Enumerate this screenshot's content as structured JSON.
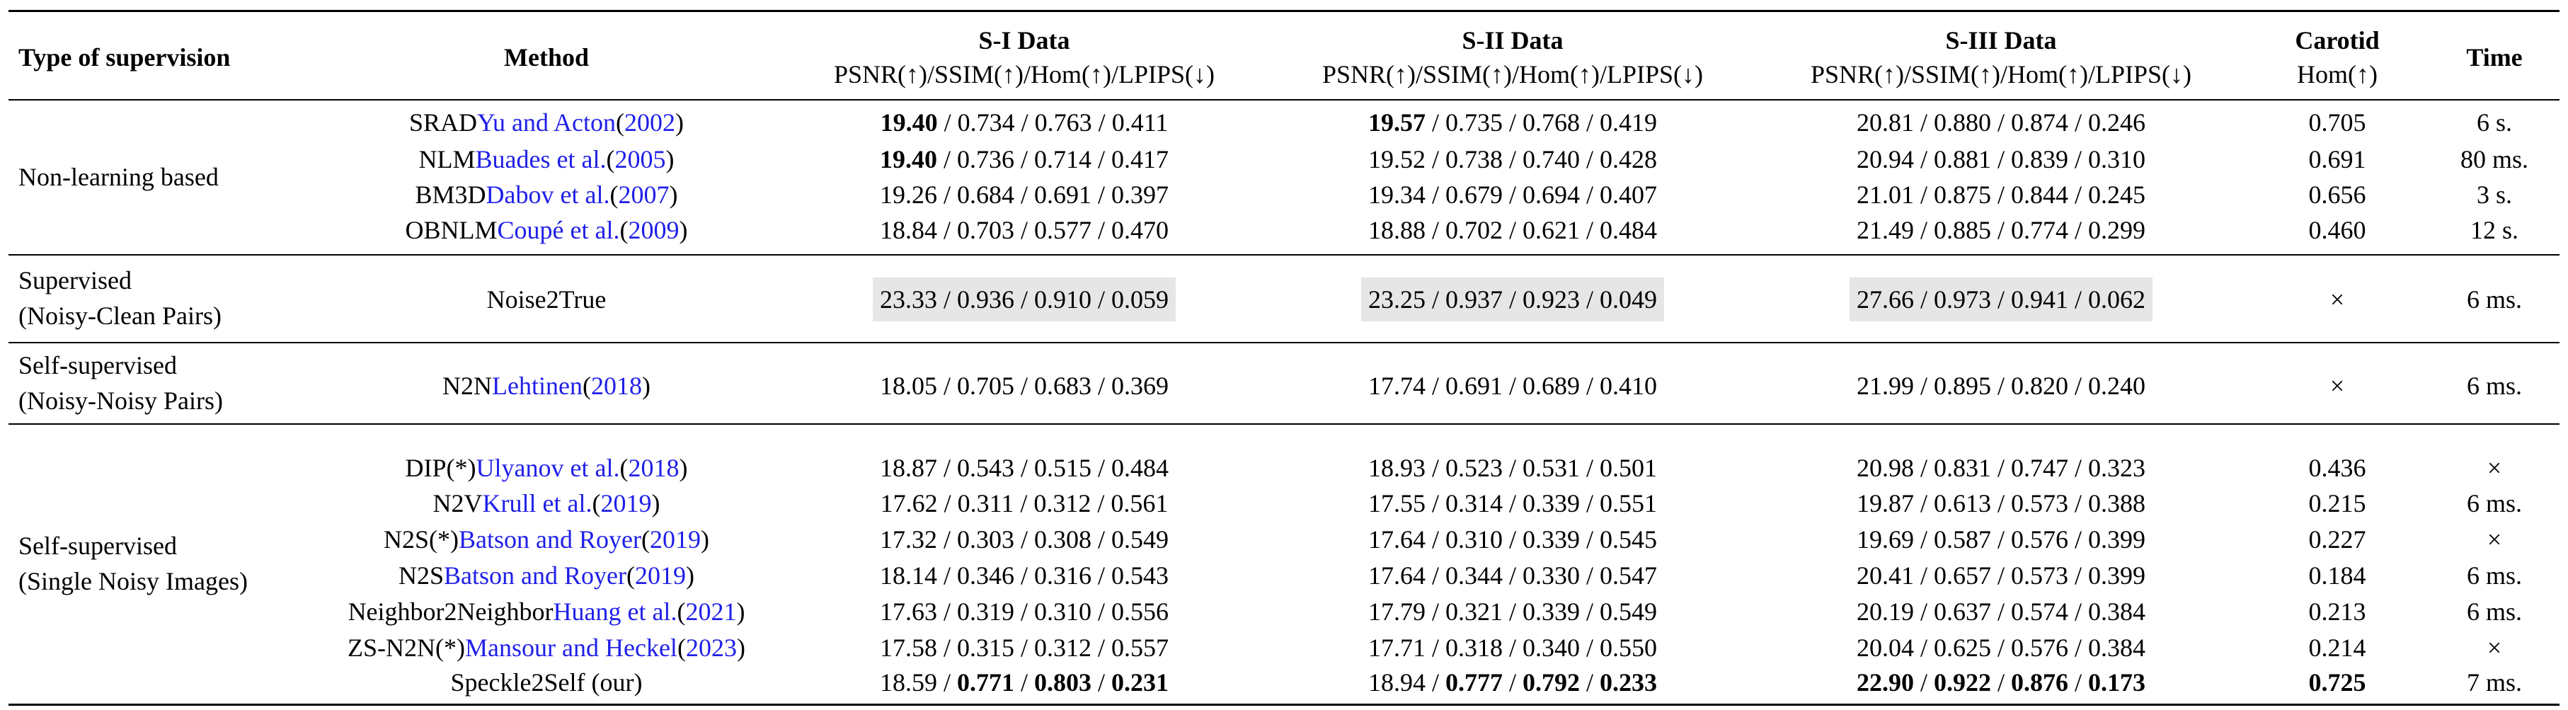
{
  "header": {
    "type_of_supervision": "Type of supervision",
    "method": "Method",
    "s1_title": "S-I Data",
    "s2_title": "S-II Data",
    "s3_title": "S-III Data",
    "metrics": "PSNR(↑)/SSIM(↑)/Hom(↑)/LPIPS(↓)",
    "carotid_title": "Carotid",
    "carotid_metric": "Hom(↑)",
    "time": "Time"
  },
  "groups": [
    {
      "line1": "Non-learning based",
      "line2": ""
    },
    {
      "line1": "Supervised",
      "line2": "(Noisy-Clean Pairs)"
    },
    {
      "line1": "Self-supervised",
      "line2": "(Noisy-Noisy Pairs)"
    },
    {
      "line1": "Self-supervised",
      "line2": "(Single Noisy Images)"
    }
  ],
  "rows": [
    {
      "m": {
        "name": "SRAD ",
        "cite": "Yu and Acton",
        "open": " (",
        "year": "2002",
        "close": ")"
      },
      "s1": {
        "psnr": "19.40",
        "ssim": "0.734",
        "hom": "0.763",
        "lpips": "0.411"
      },
      "s2": {
        "psnr": "19.57",
        "ssim": "0.735",
        "hom": "0.768",
        "lpips": "0.419"
      },
      "s3": {
        "psnr": "20.81",
        "ssim": "0.880",
        "hom": "0.874",
        "lpips": "0.246"
      },
      "carotid": "0.705",
      "time": "6 s."
    },
    {
      "m": {
        "name": "NLM ",
        "cite": "Buades et al.",
        "open": " (",
        "year": "2005",
        "close": ")"
      },
      "s1": {
        "psnr": "19.40",
        "ssim": "0.736",
        "hom": "0.714",
        "lpips": "0.417"
      },
      "s2": {
        "psnr": "19.52",
        "ssim": "0.738",
        "hom": "0.740",
        "lpips": "0.428"
      },
      "s3": {
        "psnr": "20.94",
        "ssim": "0.881",
        "hom": "0.839",
        "lpips": "0.310"
      },
      "carotid": "0.691",
      "time": "80 ms."
    },
    {
      "m": {
        "name": "BM3D ",
        "cite": "Dabov et al.",
        "open": " (",
        "year": "2007",
        "close": ")"
      },
      "s1": {
        "psnr": "19.26",
        "ssim": "0.684",
        "hom": "0.691",
        "lpips": "0.397"
      },
      "s2": {
        "psnr": "19.34",
        "ssim": "0.679",
        "hom": "0.694",
        "lpips": "0.407"
      },
      "s3": {
        "psnr": "21.01",
        "ssim": "0.875",
        "hom": "0.844",
        "lpips": "0.245"
      },
      "carotid": "0.656",
      "time": "3 s."
    },
    {
      "m": {
        "name": "OBNLM ",
        "cite": "Coupé et al.",
        "open": " (",
        "year": "2009",
        "close": ")"
      },
      "s1": {
        "psnr": "18.84",
        "ssim": "0.703",
        "hom": "0.577",
        "lpips": "0.470"
      },
      "s2": {
        "psnr": "18.88",
        "ssim": "0.702",
        "hom": "0.621",
        "lpips": "0.484"
      },
      "s3": {
        "psnr": "21.49",
        "ssim": "0.885",
        "hom": "0.774",
        "lpips": "0.299"
      },
      "carotid": "0.460",
      "time": "12 s."
    },
    {
      "m": {
        "name": "Noise2True",
        "cite": "",
        "open": "",
        "year": "",
        "close": ""
      },
      "s1": {
        "psnr": "23.33",
        "ssim": "0.936",
        "hom": "0.910",
        "lpips": "0.059"
      },
      "s2": {
        "psnr": "23.25",
        "ssim": "0.937",
        "hom": "0.923",
        "lpips": "0.049"
      },
      "s3": {
        "psnr": "27.66",
        "ssim": "0.973",
        "hom": "0.941",
        "lpips": "0.062"
      },
      "carotid": "×",
      "time": "6 ms."
    },
    {
      "m": {
        "name": "N2N ",
        "cite": "Lehtinen",
        "open": " (",
        "year": "2018",
        "close": ")"
      },
      "s1": {
        "psnr": "18.05",
        "ssim": "0.705",
        "hom": "0.683",
        "lpips": "0.369"
      },
      "s2": {
        "psnr": "17.74",
        "ssim": "0.691",
        "hom": "0.689",
        "lpips": "0.410"
      },
      "s3": {
        "psnr": "21.99",
        "ssim": "0.895",
        "hom": "0.820",
        "lpips": "0.240"
      },
      "carotid": "×",
      "time": "6 ms."
    },
    {
      "m": {
        "name": "DIP(*) ",
        "cite": "Ulyanov et al.",
        "open": " (",
        "year": "2018",
        "close": ")"
      },
      "s1": {
        "psnr": "18.87",
        "ssim": "0.543",
        "hom": "0.515",
        "lpips": "0.484"
      },
      "s2": {
        "psnr": "18.93",
        "ssim": "0.523",
        "hom": "0.531",
        "lpips": "0.501"
      },
      "s3": {
        "psnr": "20.98",
        "ssim": "0.831",
        "hom": "0.747",
        "lpips": "0.323"
      },
      "carotid": "0.436",
      "time": "×"
    },
    {
      "m": {
        "name": "N2V ",
        "cite": "Krull et al.",
        "open": " (",
        "year": "2019",
        "close": ")"
      },
      "s1": {
        "psnr": "17.62",
        "ssim": "0.311",
        "hom": "0.312",
        "lpips": "0.561"
      },
      "s2": {
        "psnr": "17.55",
        "ssim": "0.314",
        "hom": "0.339",
        "lpips": "0.551"
      },
      "s3": {
        "psnr": "19.87",
        "ssim": "0.613",
        "hom": "0.573",
        "lpips": "0.388"
      },
      "carotid": "0.215",
      "time": "6 ms."
    },
    {
      "m": {
        "name": "N2S(*) ",
        "cite": "Batson and Royer",
        "open": " (",
        "year": "2019",
        "close": ")"
      },
      "s1": {
        "psnr": "17.32",
        "ssim": "0.303",
        "hom": "0.308",
        "lpips": "0.549"
      },
      "s2": {
        "psnr": "17.64",
        "ssim": "0.310",
        "hom": "0.339",
        "lpips": "0.545"
      },
      "s3": {
        "psnr": "19.69",
        "ssim": "0.587",
        "hom": "0.576",
        "lpips": "0.399"
      },
      "carotid": "0.227",
      "time": "×"
    },
    {
      "m": {
        "name": "N2S ",
        "cite": "Batson and Royer",
        "open": " (",
        "year": "2019",
        "close": ")"
      },
      "s1": {
        "psnr": "18.14",
        "ssim": "0.346",
        "hom": "0.316",
        "lpips": "0.543"
      },
      "s2": {
        "psnr": "17.64",
        "ssim": "0.344",
        "hom": "0.330",
        "lpips": "0.547"
      },
      "s3": {
        "psnr": "20.41",
        "ssim": "0.657",
        "hom": "0.573",
        "lpips": "0.399"
      },
      "carotid": "0.184",
      "time": "6 ms."
    },
    {
      "m": {
        "name": "Neighbor2Neighbor ",
        "cite": "Huang et al.",
        "open": " (",
        "year": "2021",
        "close": ")"
      },
      "s1": {
        "psnr": "17.63",
        "ssim": "0.319",
        "hom": "0.310",
        "lpips": "0.556"
      },
      "s2": {
        "psnr": "17.79",
        "ssim": "0.321",
        "hom": "0.339",
        "lpips": "0.549"
      },
      "s3": {
        "psnr": "20.19",
        "ssim": "0.637",
        "hom": "0.574",
        "lpips": "0.384"
      },
      "carotid": "0.213",
      "time": "6 ms."
    },
    {
      "m": {
        "name": "ZS-N2N(*) ",
        "cite": "Mansour and Heckel",
        "open": " (",
        "year": "2023",
        "close": ")"
      },
      "s1": {
        "psnr": "17.58",
        "ssim": "0.315",
        "hom": "0.312",
        "lpips": "0.557"
      },
      "s2": {
        "psnr": "17.71",
        "ssim": "0.318",
        "hom": "0.340",
        "lpips": "0.550"
      },
      "s3": {
        "psnr": "20.04",
        "ssim": "0.625",
        "hom": "0.576",
        "lpips": "0.384"
      },
      "carotid": "0.214",
      "time": "×"
    },
    {
      "m": {
        "name": "Speckle2Self (our)",
        "cite": "",
        "open": "",
        "year": "",
        "close": ""
      },
      "s1": {
        "psnr": "18.59",
        "ssim": "0.771",
        "hom": "0.803",
        "lpips": "0.231"
      },
      "s2": {
        "psnr": "18.94",
        "ssim": "0.777",
        "hom": "0.792",
        "lpips": "0.233"
      },
      "s3": {
        "psnr": "22.90",
        "ssim": "0.922",
        "hom": "0.876",
        "lpips": "0.173"
      },
      "carotid": "0.725",
      "time": "7 ms."
    }
  ],
  "sep": " / "
}
